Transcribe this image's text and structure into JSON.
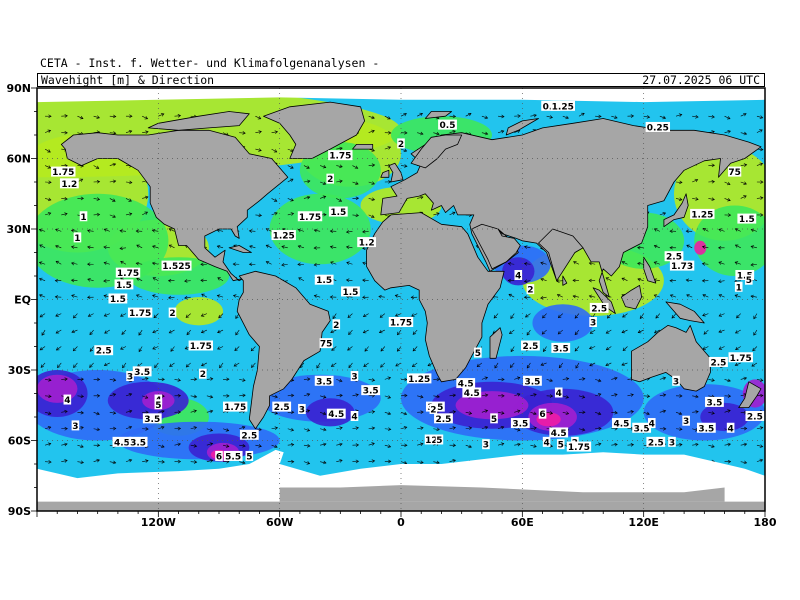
{
  "header": {
    "title": "CETA - Inst. f. Wetter- und Klimafolgenanalysen -",
    "subtitle": "Wavehight [m] & Direction",
    "datetime": "27.07.2025 06 UTC"
  },
  "map": {
    "projection": "equirectangular",
    "lon_range": [
      -180,
      180
    ],
    "lat_range": [
      -90,
      90
    ],
    "grid": true,
    "lat_labels": [
      {
        "lat": 90,
        "text": "90N"
      },
      {
        "lat": 60,
        "text": "60N"
      },
      {
        "lat": 30,
        "text": "30N"
      },
      {
        "lat": 0,
        "text": "EQ"
      },
      {
        "lat": -30,
        "text": "30S"
      },
      {
        "lat": -60,
        "text": "60S"
      },
      {
        "lat": -90,
        "text": "90S"
      }
    ],
    "lon_labels": [
      {
        "lon": -120,
        "text": "120W"
      },
      {
        "lon": -60,
        "text": "60W"
      },
      {
        "lon": 0,
        "text": "0"
      },
      {
        "lon": 60,
        "text": "60E"
      },
      {
        "lon": 120,
        "text": "120E"
      },
      {
        "lon": 180,
        "text": "180"
      }
    ],
    "colors": {
      "land": "#a6a6a6",
      "ice": "#ffffff",
      "border": "#000000",
      "wave_low": "#b6ea1e",
      "wave_1": "#3ee85a",
      "wave_2": "#22c4ee",
      "wave_3": "#2f6cf6",
      "wave_4": "#3a22d2",
      "wave_5": "#a21fcf",
      "wave_6": "#ee1ca4"
    },
    "wave_labels": [
      {
        "lon": -167,
        "lat": 54,
        "text": "1.75"
      },
      {
        "lon": -164,
        "lat": 49,
        "text": "1.2"
      },
      {
        "lon": -157,
        "lat": 35,
        "text": "1"
      },
      {
        "lon": -160,
        "lat": 26,
        "text": "1"
      },
      {
        "lon": -135,
        "lat": 11,
        "text": "1.75"
      },
      {
        "lon": -137,
        "lat": 6,
        "text": "1.5"
      },
      {
        "lon": -111,
        "lat": 14,
        "text": "1.525"
      },
      {
        "lon": -140,
        "lat": 0,
        "text": "1.5"
      },
      {
        "lon": -129,
        "lat": -6,
        "text": "1.75"
      },
      {
        "lon": -113,
        "lat": -6,
        "text": "2"
      },
      {
        "lon": -147,
        "lat": -22,
        "text": "2.5"
      },
      {
        "lon": -99,
        "lat": -20,
        "text": "1.75"
      },
      {
        "lon": -128,
        "lat": -31,
        "text": "3.5"
      },
      {
        "lon": -134,
        "lat": -33,
        "text": "3"
      },
      {
        "lon": -98,
        "lat": -32,
        "text": "2"
      },
      {
        "lon": -165,
        "lat": -43,
        "text": "4"
      },
      {
        "lon": -120,
        "lat": -43,
        "text": "4"
      },
      {
        "lon": -120,
        "lat": -45,
        "text": "5"
      },
      {
        "lon": -82,
        "lat": -46,
        "text": "1.75"
      },
      {
        "lon": -123,
        "lat": -51,
        "text": "3.5"
      },
      {
        "lon": -161,
        "lat": -54,
        "text": "3"
      },
      {
        "lon": -75,
        "lat": -58,
        "text": "2.5"
      },
      {
        "lon": -138,
        "lat": -61,
        "text": "4.5"
      },
      {
        "lon": -130,
        "lat": -61,
        "text": "3.5"
      },
      {
        "lon": -90,
        "lat": -67,
        "text": "6"
      },
      {
        "lon": -83,
        "lat": -67,
        "text": "5.5"
      },
      {
        "lon": -75,
        "lat": -67,
        "text": "5"
      },
      {
        "lon": -59,
        "lat": -46,
        "text": "2.5"
      },
      {
        "lon": -49,
        "lat": -47,
        "text": "3"
      },
      {
        "lon": -38,
        "lat": -35,
        "text": "3.5"
      },
      {
        "lon": -32,
        "lat": -49,
        "text": "4.5"
      },
      {
        "lon": -23,
        "lat": -50,
        "text": "4"
      },
      {
        "lon": -23,
        "lat": -33,
        "text": "3"
      },
      {
        "lon": -15,
        "lat": -39,
        "text": "3.5"
      },
      {
        "lon": -37,
        "lat": -19,
        "text": "75"
      },
      {
        "lon": -32,
        "lat": -11,
        "text": "2"
      },
      {
        "lon": 0,
        "lat": -10,
        "text": "1.75"
      },
      {
        "lon": 9,
        "lat": -34,
        "text": "1.25"
      },
      {
        "lon": 17,
        "lat": -46,
        "text": "3.5"
      },
      {
        "lon": 16,
        "lat": -47,
        "text": "2"
      },
      {
        "lon": 21,
        "lat": -51,
        "text": "2.5"
      },
      {
        "lon": 15,
        "lat": -60,
        "text": "12"
      },
      {
        "lon": 19,
        "lat": -60,
        "text": "5"
      },
      {
        "lon": 32,
        "lat": -36,
        "text": "4.5"
      },
      {
        "lon": 35,
        "lat": -40,
        "text": "4.5"
      },
      {
        "lon": 38,
        "lat": -23,
        "text": "5"
      },
      {
        "lon": 46,
        "lat": -51,
        "text": "5"
      },
      {
        "lon": 59,
        "lat": -53,
        "text": "3.5"
      },
      {
        "lon": 42,
        "lat": -62,
        "text": "3"
      },
      {
        "lon": 65,
        "lat": -35,
        "text": "3.5"
      },
      {
        "lon": 70,
        "lat": -49,
        "text": "6"
      },
      {
        "lon": 78,
        "lat": -57,
        "text": "4.5"
      },
      {
        "lon": 72,
        "lat": -61,
        "text": "4"
      },
      {
        "lon": 86,
        "lat": -61,
        "text": "2"
      },
      {
        "lon": 88,
        "lat": -63,
        "text": "1.75"
      },
      {
        "lon": 79,
        "lat": -62,
        "text": "5"
      },
      {
        "lon": 64,
        "lat": -20,
        "text": "2.5"
      },
      {
        "lon": 79,
        "lat": -21,
        "text": "3.5"
      },
      {
        "lon": 78,
        "lat": -40,
        "text": "4"
      },
      {
        "lon": 109,
        "lat": -53,
        "text": "4.5"
      },
      {
        "lon": 119,
        "lat": -55,
        "text": "3.5"
      },
      {
        "lon": 124,
        "lat": -53,
        "text": "4"
      },
      {
        "lon": 126,
        "lat": -61,
        "text": "2.5"
      },
      {
        "lon": 134,
        "lat": -61,
        "text": "3"
      },
      {
        "lon": 141,
        "lat": -52,
        "text": "3"
      },
      {
        "lon": 151,
        "lat": -55,
        "text": "3.5"
      },
      {
        "lon": 163,
        "lat": -55,
        "text": "4"
      },
      {
        "lon": 155,
        "lat": -44,
        "text": "3.5"
      },
      {
        "lon": 175,
        "lat": -50,
        "text": "2.5"
      },
      {
        "lon": 136,
        "lat": -35,
        "text": "3"
      },
      {
        "lon": 157,
        "lat": -27,
        "text": "2.5"
      },
      {
        "lon": 168,
        "lat": -25,
        "text": "1.75"
      },
      {
        "lon": 98,
        "lat": -4,
        "text": "2.5"
      },
      {
        "lon": 95,
        "lat": -10,
        "text": "3"
      },
      {
        "lon": 58,
        "lat": 10,
        "text": "4"
      },
      {
        "lon": 64,
        "lat": 4,
        "text": "2"
      },
      {
        "lon": 135,
        "lat": 18,
        "text": "2.5"
      },
      {
        "lon": 139,
        "lat": 14,
        "text": "1.73"
      },
      {
        "lon": 149,
        "lat": 36,
        "text": "1.25"
      },
      {
        "lon": 171,
        "lat": 34,
        "text": "1.5"
      },
      {
        "lon": 170,
        "lat": 10,
        "text": "1.5"
      },
      {
        "lon": 172,
        "lat": 8,
        "text": "5"
      },
      {
        "lon": 167,
        "lat": 5,
        "text": "1"
      },
      {
        "lon": 165,
        "lat": 54,
        "text": "75"
      },
      {
        "lon": 127,
        "lat": 73,
        "text": "0.25"
      },
      {
        "lon": 74,
        "lat": 82,
        "text": "0.1"
      },
      {
        "lon": 80,
        "lat": 82,
        "text": "1.25"
      },
      {
        "lon": 23,
        "lat": 74,
        "text": "0.5"
      },
      {
        "lon": 0,
        "lat": 66,
        "text": "2"
      },
      {
        "lon": -30,
        "lat": 61,
        "text": "1.75"
      },
      {
        "lon": -35,
        "lat": 51,
        "text": "2"
      },
      {
        "lon": -45,
        "lat": 35,
        "text": "1.75"
      },
      {
        "lon": -31,
        "lat": 37,
        "text": "1.5"
      },
      {
        "lon": -58,
        "lat": 27,
        "text": "1.25"
      },
      {
        "lon": -17,
        "lat": 24,
        "text": "1.2"
      },
      {
        "lon": -38,
        "lat": 8,
        "text": "1.5"
      },
      {
        "lon": -25,
        "lat": 3,
        "text": "1.5"
      }
    ]
  }
}
